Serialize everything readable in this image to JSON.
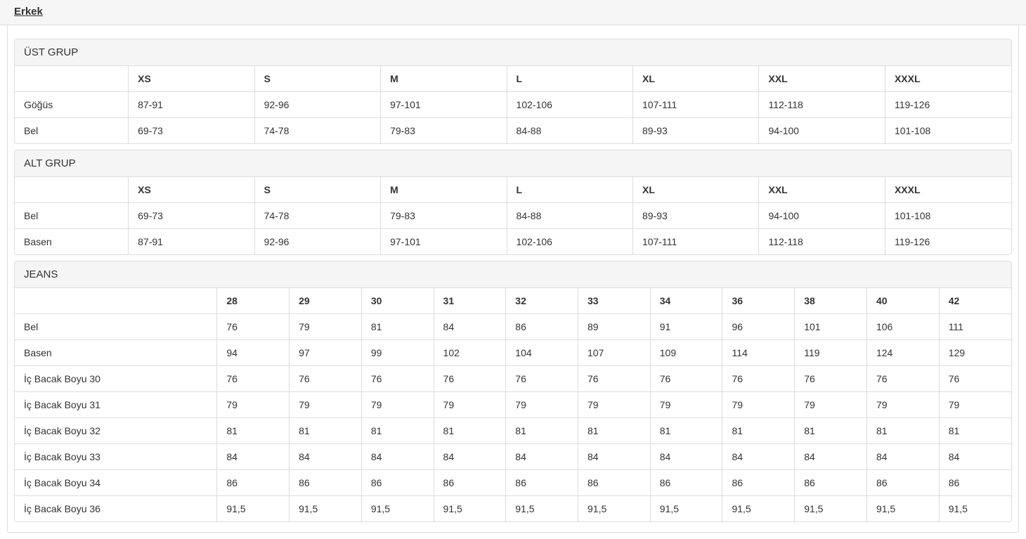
{
  "page": {
    "title": "Erkek"
  },
  "colors": {
    "border": "#dddddd",
    "heading_background": "#f5f5f5",
    "topbar_background": "#f6f6f6",
    "text": "#333333"
  },
  "panels": [
    {
      "heading": "ÜST GRUP",
      "columns": [
        "",
        "XS",
        "S",
        "M",
        "L",
        "XL",
        "XXL",
        "XXXL"
      ],
      "rows": [
        {
          "label": "Göğüs",
          "values": [
            "87-91",
            "92-96",
            "97-101",
            "102-106",
            "107-111",
            "112-118",
            "119-126"
          ]
        },
        {
          "label": "Bel",
          "values": [
            "69-73",
            "74-78",
            "79-83",
            "84-88",
            "89-93",
            "94-100",
            "101-108"
          ]
        }
      ]
    },
    {
      "heading": "ALT GRUP",
      "columns": [
        "",
        "XS",
        "S",
        "M",
        "L",
        "XL",
        "XXL",
        "XXXL"
      ],
      "rows": [
        {
          "label": "Bel",
          "values": [
            "69-73",
            "74-78",
            "79-83",
            "84-88",
            "89-93",
            "94-100",
            "101-108"
          ]
        },
        {
          "label": "Basen",
          "values": [
            "87-91",
            "92-96",
            "97-101",
            "102-106",
            "107-111",
            "112-118",
            "119-126"
          ]
        }
      ]
    },
    {
      "heading": "JEANS",
      "columns": [
        "",
        "28",
        "29",
        "30",
        "31",
        "32",
        "33",
        "34",
        "36",
        "38",
        "40",
        "42"
      ],
      "rows": [
        {
          "label": "Bel",
          "values": [
            "76",
            "79",
            "81",
            "84",
            "86",
            "89",
            "91",
            "96",
            "101",
            "106",
            "111"
          ]
        },
        {
          "label": "Basen",
          "values": [
            "94",
            "97",
            "99",
            "102",
            "104",
            "107",
            "109",
            "114",
            "119",
            "124",
            "129"
          ]
        },
        {
          "label": "İç Bacak Boyu 30",
          "values": [
            "76",
            "76",
            "76",
            "76",
            "76",
            "76",
            "76",
            "76",
            "76",
            "76",
            "76"
          ]
        },
        {
          "label": "İç Bacak Boyu 31",
          "values": [
            "79",
            "79",
            "79",
            "79",
            "79",
            "79",
            "79",
            "79",
            "79",
            "79",
            "79"
          ]
        },
        {
          "label": "İç Bacak Boyu 32",
          "values": [
            "81",
            "81",
            "81",
            "81",
            "81",
            "81",
            "81",
            "81",
            "81",
            "81",
            "81"
          ]
        },
        {
          "label": "İç Bacak Boyu 33",
          "values": [
            "84",
            "84",
            "84",
            "84",
            "84",
            "84",
            "84",
            "84",
            "84",
            "84",
            "84"
          ]
        },
        {
          "label": "İç Bacak Boyu 34",
          "values": [
            "86",
            "86",
            "86",
            "86",
            "86",
            "86",
            "86",
            "86",
            "86",
            "86",
            "86"
          ]
        },
        {
          "label": "İç Bacak Boyu 36",
          "values": [
            "91,5",
            "91,5",
            "91,5",
            "91,5",
            "91,5",
            "91,5",
            "91,5",
            "91,5",
            "91,5",
            "91,5",
            "91,5"
          ]
        }
      ]
    }
  ]
}
